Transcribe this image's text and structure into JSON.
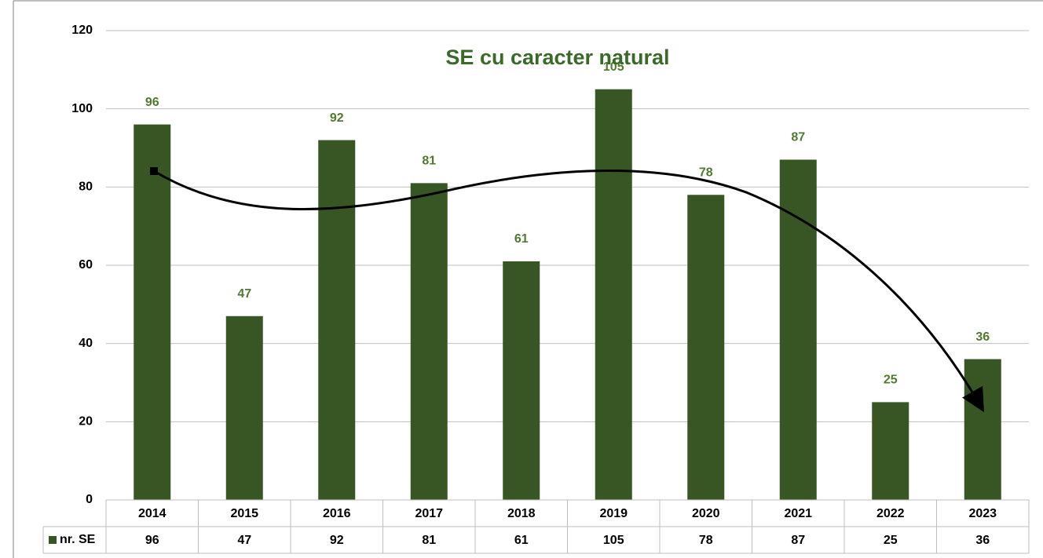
{
  "chart_data": {
    "type": "bar",
    "title": "SE cu caracter natural",
    "categories": [
      "2014",
      "2015",
      "2016",
      "2017",
      "2018",
      "2019",
      "2020",
      "2021",
      "2022",
      "2023"
    ],
    "series": [
      {
        "name": "nr. SE",
        "color": "#375623",
        "values": [
          96,
          47,
          92,
          81,
          61,
          105,
          78,
          87,
          25,
          36
        ]
      }
    ],
    "ylim": [
      0,
      120
    ],
    "yticks": [
      0,
      20,
      40,
      60,
      80,
      100,
      120
    ],
    "grid": true
  }
}
